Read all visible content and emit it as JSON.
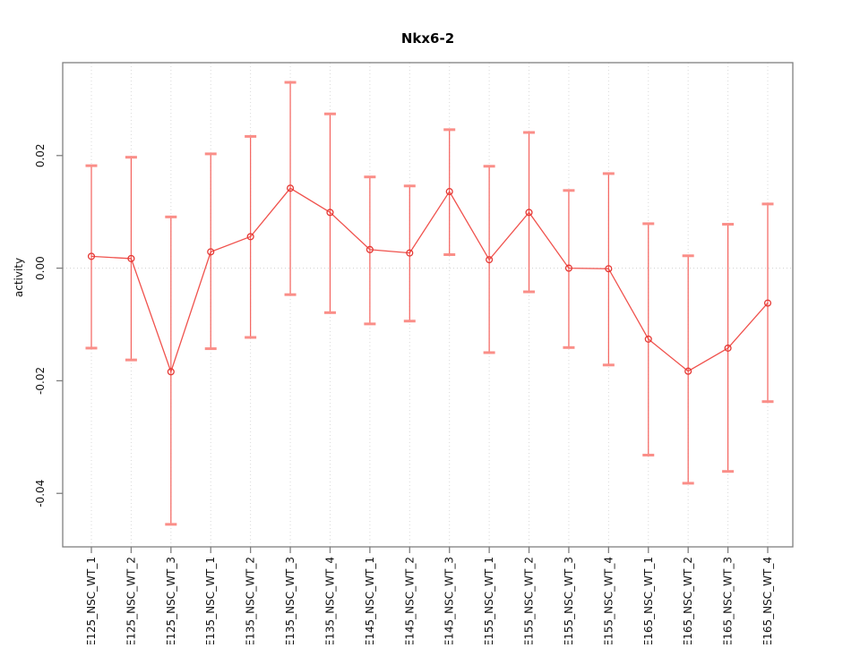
{
  "chart_data": {
    "type": "line",
    "title": "Nkx6-2",
    "xlabel": "",
    "ylabel": "activity",
    "categories": [
      "E125_NSC_WT_1",
      "E125_NSC_WT_2",
      "E125_NSC_WT_3",
      "E135_NSC_WT_1",
      "E135_NSC_WT_2",
      "E135_NSC_WT_3",
      "E135_NSC_WT_4",
      "E145_NSC_WT_1",
      "E145_NSC_WT_2",
      "E145_NSC_WT_3",
      "E155_NSC_WT_1",
      "E155_NSC_WT_2",
      "E155_NSC_WT_3",
      "E155_NSC_WT_4",
      "E165_NSC_WT_1",
      "E165_NSC_WT_2",
      "E165_NSC_WT_3",
      "E165_NSC_WT_4"
    ],
    "series": [
      {
        "name": "activity",
        "values": [
          0.0021,
          0.0017,
          -0.0184,
          0.0029,
          0.0056,
          0.0142,
          0.0099,
          0.0033,
          0.0027,
          0.0136,
          0.0015,
          0.0099,
          0.0,
          -0.0001,
          -0.0126,
          -0.0183,
          -0.0142,
          -0.0062
        ],
        "error_high": [
          0.0182,
          0.0197,
          0.0091,
          0.0203,
          0.0234,
          0.033,
          0.0274,
          0.0162,
          0.0146,
          0.0246,
          0.0181,
          0.0241,
          0.0138,
          0.0168,
          0.0079,
          0.0022,
          0.0078,
          0.0114
        ],
        "error_low": [
          -0.0142,
          -0.0163,
          -0.0455,
          -0.0143,
          -0.0123,
          -0.0047,
          -0.0079,
          -0.0099,
          -0.0094,
          0.0024,
          -0.015,
          -0.0042,
          -0.0141,
          -0.0172,
          -0.0332,
          -0.0382,
          -0.0361,
          -0.0237
        ]
      }
    ],
    "ylim": [
      -0.0495,
      0.0365
    ],
    "yticks": [
      -0.04,
      -0.02,
      0,
      0.02
    ],
    "ytick_labels": [
      "-0.04",
      "-0.02",
      "0.00",
      "0.02"
    ],
    "grid": "vertical dotted gridlines at each category; dotted horizontal line at y=0",
    "legend": "none",
    "marker": "open-circle",
    "colors": {
      "series_line": "#f0524d",
      "error_stem": "#f4625d",
      "error_cap": "#fa8e88",
      "point_stroke": "#e53935",
      "gridline": "#d9d9d9",
      "zero_line": "#cfcfcf",
      "axis": "#7f7f7f",
      "text": "#111111"
    }
  }
}
